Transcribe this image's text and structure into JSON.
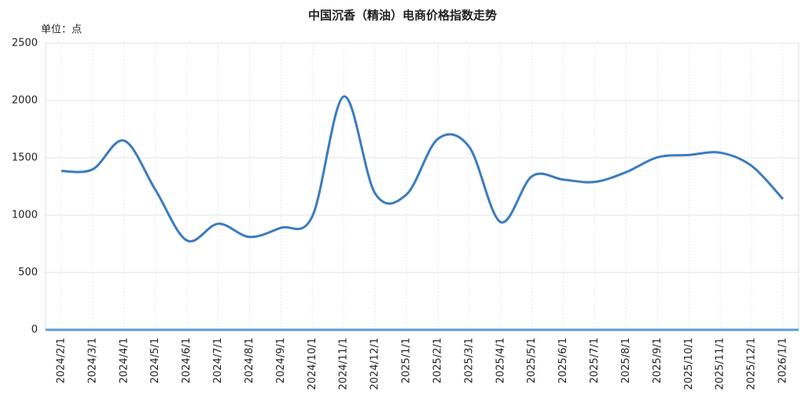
{
  "chart_data": {
    "type": "line",
    "title": "中国沉香（精油）电商价格指数走势",
    "unit_label": "单位：点",
    "categories": [
      "2024/2/1",
      "2024/3/1",
      "2024/4/1",
      "2024/5/1",
      "2024/6/1",
      "2024/7/1",
      "2024/8/1",
      "2024/9/1",
      "2024/10/1",
      "2024/11/1",
      "2024/12/1",
      "2025/1/1",
      "2025/2/1",
      "2025/3/1",
      "2025/4/1",
      "2025/5/1",
      "2025/6/1",
      "2025/7/1",
      "2025/8/1",
      "2025/9/1",
      "2025/10/1",
      "2025/11/1",
      "2025/12/1",
      "2026/1/1"
    ],
    "series": [
      {
        "color": "#3b7cbf",
        "values": [
          1385,
          1400,
          1650,
          1220,
          780,
          925,
          810,
          890,
          990,
          2035,
          1190,
          1180,
          1665,
          1595,
          940,
          1340,
          1310,
          1290,
          1375,
          1505,
          1525,
          1545,
          1430,
          1140
        ]
      }
    ],
    "ylim": [
      0,
      2500
    ],
    "yticks": [
      0,
      500,
      1000,
      1500,
      2000,
      2500
    ],
    "grid": true,
    "smooth": true
  }
}
